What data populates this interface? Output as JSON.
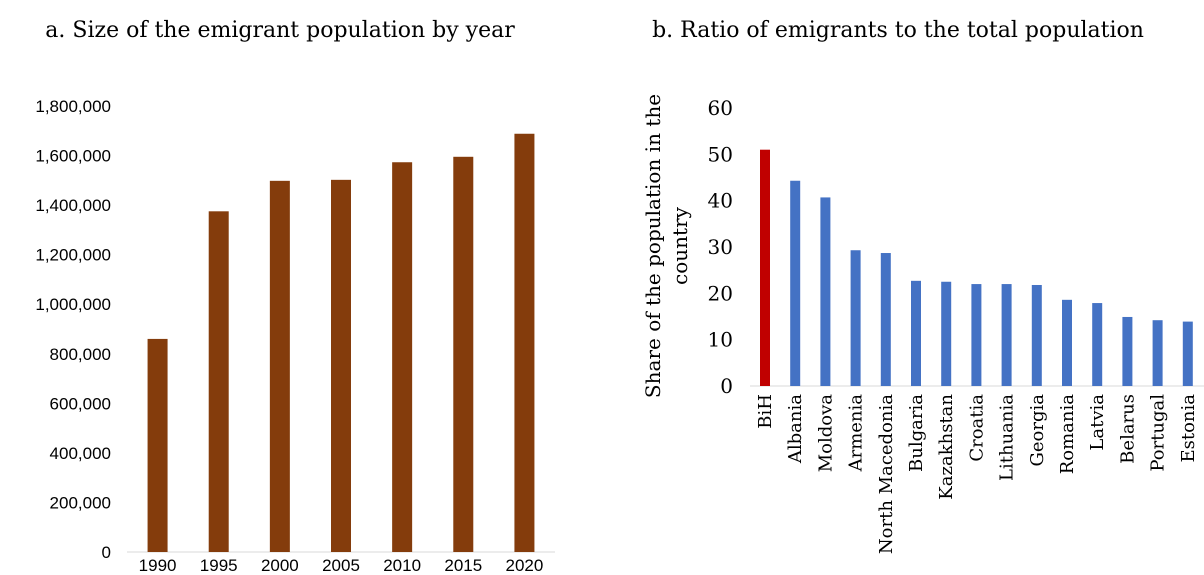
{
  "chart_data": [
    {
      "type": "bar",
      "title": "a. Size of the emigrant population by year",
      "xlabel": "",
      "ylabel": "",
      "categories": [
        "1990",
        "1995",
        "2000",
        "2005",
        "2010",
        "2015",
        "2020"
      ],
      "values": [
        860000,
        1375000,
        1498000,
        1502000,
        1573000,
        1595000,
        1688000
      ],
      "yticks": [
        "0",
        "200,000",
        "400,000",
        "600,000",
        "800,000",
        "1,000,000",
        "1,200,000",
        "1,400,000",
        "1,600,000",
        "1,800,000"
      ],
      "ylim": [
        0,
        1800000
      ],
      "grid": false,
      "colors": {
        "bar": "#843c0c"
      }
    },
    {
      "type": "bar",
      "title": "b. Ratio of emigrants to the total population",
      "xlabel": "",
      "ylabel": "Share of the population in the country",
      "ylabel_lines": [
        "Share of the population in the",
        "country"
      ],
      "categories": [
        "BiH",
        "Albania",
        "Moldova",
        "Armenia",
        "North Macedonia",
        "Bulgaria",
        "Kazakhstan",
        "Croatia",
        "Lithuania",
        "Georgia",
        "Romania",
        "Latvia",
        "Belarus",
        "Portugal",
        "Estonia"
      ],
      "values": [
        51,
        44.3,
        40.7,
        29.3,
        28.7,
        22.7,
        22.5,
        22,
        22,
        21.8,
        18.6,
        17.9,
        14.9,
        14.2,
        13.9
      ],
      "yticks": [
        "0",
        "10",
        "20",
        "30",
        "40",
        "50",
        "60"
      ],
      "ylim": [
        0,
        60
      ],
      "grid": false,
      "colors": {
        "highlight": "#c00000",
        "bar": "#4472c4"
      }
    }
  ]
}
